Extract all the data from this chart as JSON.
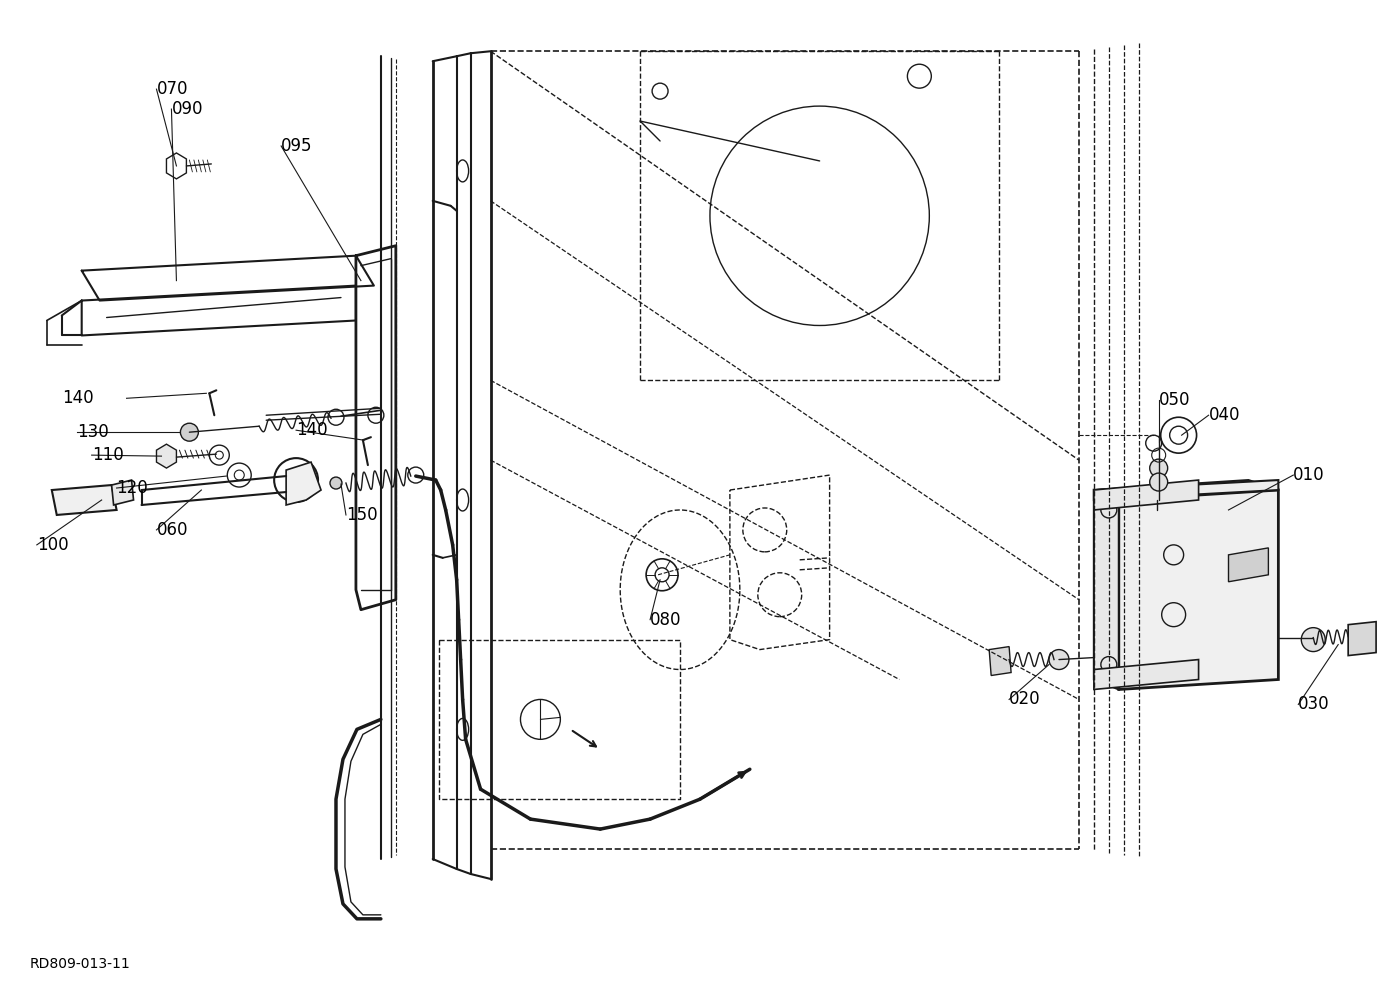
{
  "diagram_code": "RD809-013-11",
  "background_color": "#ffffff",
  "line_color": "#1a1a1a",
  "label_color": "#000000",
  "fig_width": 13.79,
  "fig_height": 10.01,
  "dpi": 100,
  "font_size": 12
}
